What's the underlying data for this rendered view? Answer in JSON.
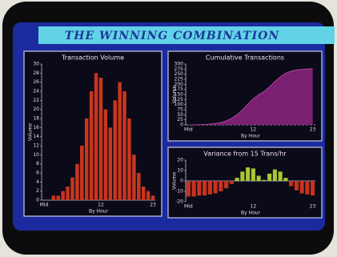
{
  "banner": {
    "title": "THE WINNING COMBINATION"
  },
  "chart_data": [
    {
      "type": "bar",
      "title": "Transaction Volume",
      "xlabel": "By Hour",
      "ylabel": "Volume",
      "categories": [
        "Mid",
        null,
        null,
        null,
        null,
        null,
        null,
        null,
        null,
        null,
        null,
        null,
        "12",
        null,
        null,
        null,
        null,
        null,
        null,
        null,
        null,
        null,
        null,
        "23"
      ],
      "values": [
        0,
        0,
        1,
        1,
        2,
        3,
        5,
        8,
        12,
        18,
        24,
        28,
        27,
        20,
        16,
        22,
        26,
        24,
        18,
        10,
        6,
        3,
        2,
        1
      ],
      "color": "#c8361e",
      "ylim": [
        0,
        30
      ],
      "yticks": [
        0,
        2,
        4,
        6,
        8,
        10,
        12,
        14,
        16,
        18,
        20,
        22,
        24,
        26,
        28,
        30
      ]
    },
    {
      "type": "area",
      "title": "Cumulative Transactions",
      "xlabel": "By Hour",
      "ylabel": "Volume",
      "categories": [
        "Mid",
        null,
        null,
        null,
        null,
        null,
        null,
        null,
        null,
        null,
        null,
        null,
        "12",
        null,
        null,
        null,
        null,
        null,
        null,
        null,
        null,
        null,
        null,
        "23"
      ],
      "values": [
        0,
        0,
        1,
        2,
        4,
        7,
        12,
        20,
        32,
        50,
        74,
        102,
        129,
        149,
        165,
        187,
        213,
        237,
        255,
        265,
        271,
        274,
        276,
        277
      ],
      "color": "#7a2070",
      "ylim": [
        0,
        300
      ],
      "yticks": [
        0,
        25,
        50,
        75,
        100,
        125,
        150,
        175,
        200,
        225,
        250,
        275,
        300
      ]
    },
    {
      "type": "bar",
      "title": "Variance from 15 Trans/hr",
      "xlabel": "By Hour",
      "ylabel": "Volume",
      "categories": [
        "Mid",
        null,
        null,
        null,
        null,
        null,
        null,
        null,
        null,
        null,
        null,
        null,
        "12",
        null,
        null,
        null,
        null,
        null,
        null,
        null,
        null,
        null,
        null,
        "23"
      ],
      "values": [
        -15,
        -15,
        -14,
        -14,
        -13,
        -12,
        -10,
        -7,
        -3,
        3,
        9,
        13,
        12,
        5,
        1,
        7,
        11,
        9,
        3,
        -5,
        -9,
        -12,
        -13,
        -14
      ],
      "color": "#c8321e",
      "positive_color": "#a8c832",
      "ylim": [
        -20,
        20
      ],
      "yticks": [
        -20,
        -10,
        0,
        10,
        20
      ]
    }
  ]
}
